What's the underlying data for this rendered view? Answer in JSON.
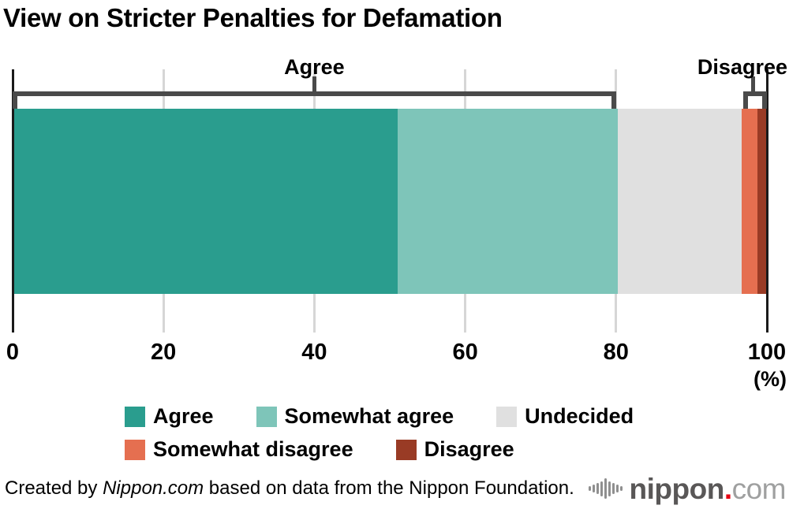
{
  "title": "View on Stricter Penalties for Defamation",
  "chart_data": {
    "type": "bar",
    "subtype": "stacked-horizontal-single-bar",
    "unit": "%",
    "xlim": [
      0,
      100
    ],
    "x_ticks": [
      "0",
      "20",
      "40",
      "60",
      "80",
      "100"
    ],
    "axis_unit_label": "(%)",
    "grid": true,
    "legend_position": "bottom",
    "series": [
      {
        "name": "Agree",
        "value": 51.0,
        "color": "#2a9d8e"
      },
      {
        "name": "Somewhat agree",
        "value": 29.2,
        "color": "#7ec5b9"
      },
      {
        "name": "Undecided",
        "value": 16.5,
        "color": "#e0e0e0"
      },
      {
        "name": "Somewhat disagree",
        "value": 2.0,
        "color": "#e56f50"
      },
      {
        "name": "Disagree",
        "value": 1.3,
        "color": "#993b25"
      }
    ],
    "brackets": [
      {
        "label": "Agree",
        "from": 0,
        "to": 80,
        "label_at": 40,
        "label_align": "center"
      },
      {
        "label": "Disagree",
        "from": 96.9,
        "to": 100,
        "label_at": 98.2,
        "label_align": "right"
      }
    ]
  },
  "styles": {
    "background": "#ffffff",
    "grid_color": "#d6d6d6",
    "axis_edge_color": "#1a1a1a",
    "bracket_color": "#4a4a4a"
  },
  "footer": {
    "credit_prefix": "Created by ",
    "credit_source": "Nippon.com",
    "credit_suffix": " based on data from the Nippon Foundation.",
    "logo": {
      "name": "nippon",
      "dot": ".",
      "tld": "com",
      "name_color": "#595757",
      "dot_color": "#e60012",
      "tld_color": "#9fa0a0",
      "wave_color": "#8f8f8f"
    }
  }
}
